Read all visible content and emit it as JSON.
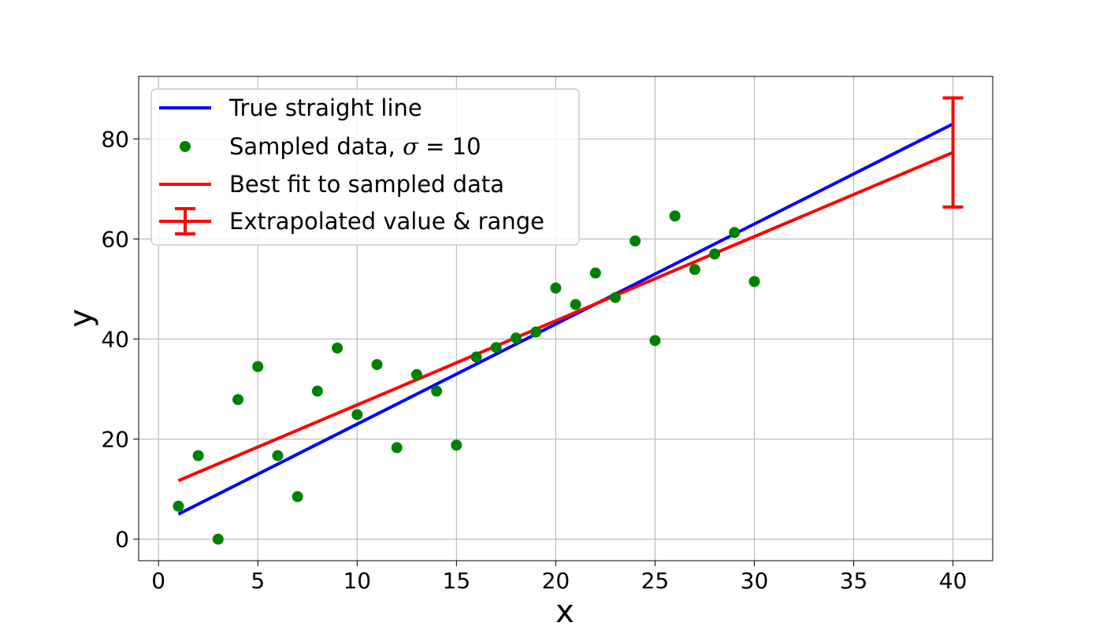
{
  "chart_data": {
    "type": "scatter",
    "xlabel": "x",
    "ylabel": "y",
    "xlim": [
      -1,
      42
    ],
    "ylim": [
      -4.3,
      92.5
    ],
    "xticks": [
      "0",
      "5",
      "10",
      "15",
      "20",
      "25",
      "30",
      "35",
      "40"
    ],
    "yticks": [
      "0",
      "20",
      "40",
      "60",
      "80"
    ],
    "grid": true,
    "legend_position": "top-left",
    "colors": {
      "true_line": "#0000ff",
      "sampled": "#008000",
      "fit": "#ff0000",
      "extrapolated": "#ff0000"
    },
    "legend": {
      "true_line": "True straight line",
      "sampled_prefix": "Sampled data, ",
      "sampled_sigma": "σ",
      "sampled_eq": " = 10",
      "fit": "Best fit to sampled data",
      "extrapolated": "Extrapolated value & range"
    },
    "series": [
      {
        "name": "True straight line",
        "kind": "line",
        "x": [
          1,
          40
        ],
        "y": [
          5.0,
          83.0
        ]
      },
      {
        "name": "Sampled data, σ = 10",
        "kind": "scatter",
        "x": [
          1,
          2,
          3,
          4,
          5,
          6,
          7,
          8,
          9,
          10,
          11,
          12,
          13,
          14,
          15,
          16,
          17,
          18,
          19,
          20,
          21,
          22,
          23,
          24,
          25,
          26,
          27,
          28,
          29,
          30
        ],
        "y": [
          6.6,
          16.7,
          0.0,
          27.9,
          34.5,
          16.7,
          8.5,
          29.6,
          38.2,
          24.9,
          34.9,
          18.3,
          32.9,
          29.6,
          18.8,
          36.4,
          38.3,
          40.2,
          41.4,
          50.2,
          46.9,
          53.2,
          48.3,
          59.6,
          39.7,
          64.6,
          53.9,
          57.0,
          61.3,
          51.5
        ]
      },
      {
        "name": "Best fit to sampled data",
        "kind": "line",
        "x": [
          1,
          40
        ],
        "y": [
          11.7,
          77.3
        ]
      },
      {
        "name": "Extrapolated value & range",
        "kind": "errorbar",
        "x": 40,
        "y": 77.3,
        "ymin": 66.4,
        "ymax": 88.2
      }
    ]
  }
}
